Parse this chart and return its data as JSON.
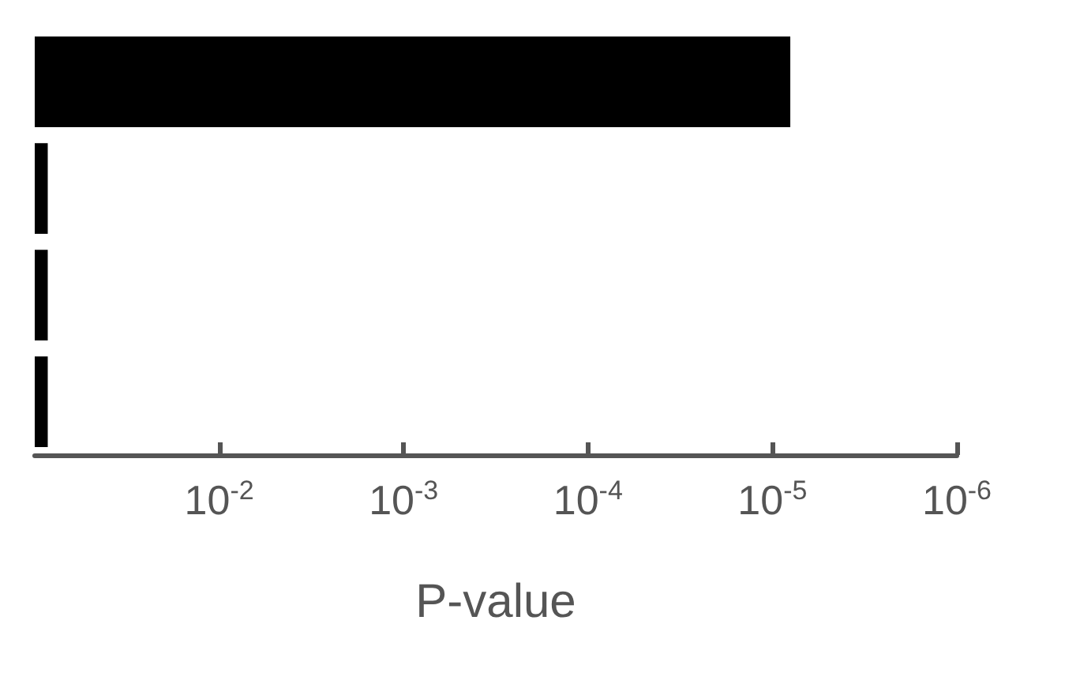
{
  "chart_data": {
    "type": "bar",
    "orientation": "horizontal",
    "categories": [
      null,
      null,
      null,
      null
    ],
    "values": [
      -0.099992,
      -0.015,
      -0.015,
      -0.015
    ],
    "base": [
      0.1,
      0.1,
      0.1,
      0.1
    ],
    "color": "#000000",
    "log": "x",
    "xlim": [
      0.1,
      1e-06
    ],
    "xticks": [
      {
        "value": 0.01,
        "label": "10$^{-2}$"
      },
      {
        "value": 0.001,
        "label": "10$^{-3}$"
      },
      {
        "value": 0.0001,
        "label": "10$^{-4}$"
      },
      {
        "value": 1e-05,
        "label": "10$^{-5}$"
      },
      {
        "value": 1e-06,
        "label": "10$^{-6}$"
      }
    ],
    "xlabel": "P-value",
    "grid": false
  }
}
